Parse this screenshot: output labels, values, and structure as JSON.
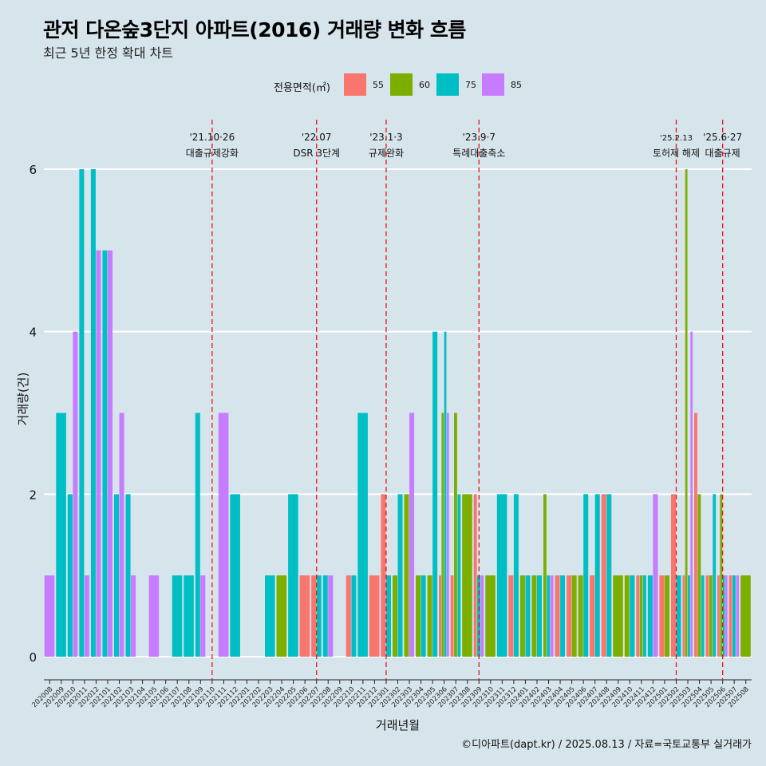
{
  "title": "관저 다온숲3단지 아파트(2016) 거래량 변화 흐름",
  "subtitle": "최근 5년 한정 확대 차트",
  "caption": "©디아파트(dapt.kr) / 2025.08.13 / 자료=국토교통부 실거래가",
  "legend": {
    "title": "전용면적(㎡)",
    "items": [
      {
        "label": "55",
        "color": "#f8766d"
      },
      {
        "label": "60",
        "color": "#7cae00"
      },
      {
        "label": "75",
        "color": "#00bfc4"
      },
      {
        "label": "85",
        "color": "#c77cff"
      }
    ]
  },
  "chart_data": {
    "type": "bar",
    "title": "관저 다온숲3단지 아파트(2016) 거래량 변화 흐름",
    "xlabel": "거래년월",
    "ylabel": "거래량(건)",
    "ylim": [
      0,
      6.5
    ],
    "yticks": [
      0,
      2,
      4,
      6
    ],
    "categories": [
      "202008",
      "202009",
      "202010",
      "202011",
      "202012",
      "202101",
      "202102",
      "202103",
      "202104",
      "202105",
      "202106",
      "202107",
      "202108",
      "202109",
      "202110",
      "202111",
      "202112",
      "202201",
      "202202",
      "202203",
      "202204",
      "202205",
      "202206",
      "202207",
      "202208",
      "202209",
      "202210",
      "202211",
      "202212",
      "202301",
      "202302",
      "202303",
      "202304",
      "202305",
      "202306",
      "202307",
      "202308",
      "202309",
      "202310",
      "202311",
      "202312",
      "202401",
      "202402",
      "202403",
      "202404",
      "202405",
      "202406",
      "202407",
      "202408",
      "202409",
      "202410",
      "202411",
      "202412",
      "202501",
      "202502",
      "202503",
      "202504",
      "202505",
      "202506",
      "202507",
      "202508"
    ],
    "series": [
      {
        "name": "55",
        "color": "#f8766d",
        "values": [
          0,
          0,
          0,
          0,
          0,
          0,
          0,
          0,
          0,
          0,
          0,
          0,
          0,
          0,
          0,
          0,
          0,
          0,
          0,
          0,
          0,
          0,
          1,
          1,
          0,
          0,
          1,
          0,
          1,
          2,
          0,
          0,
          0,
          0,
          1,
          1,
          0,
          2,
          0,
          0,
          1,
          0,
          0,
          0,
          1,
          1,
          0,
          1,
          2,
          0,
          0,
          1,
          0,
          1,
          2,
          1,
          3,
          1,
          1,
          1,
          0
        ]
      },
      {
        "name": "60",
        "color": "#7cae00",
        "values": [
          0,
          0,
          0,
          0,
          0,
          0,
          0,
          0,
          0,
          0,
          0,
          0,
          0,
          0,
          0,
          0,
          0,
          0,
          0,
          0,
          1,
          0,
          0,
          0,
          0,
          0,
          0,
          0,
          0,
          0,
          1,
          2,
          1,
          1,
          3,
          3,
          2,
          0,
          1,
          0,
          0,
          1,
          1,
          2,
          0,
          1,
          1,
          0,
          0,
          1,
          1,
          1,
          0,
          1,
          0,
          6,
          2,
          1,
          2,
          0,
          1
        ]
      },
      {
        "name": "75",
        "color": "#00bfc4",
        "values": [
          0,
          3,
          2,
          6,
          6,
          5,
          2,
          2,
          0,
          0,
          0,
          1,
          1,
          3,
          0,
          0,
          2,
          0,
          0,
          1,
          0,
          2,
          0,
          1,
          1,
          0,
          1,
          3,
          0,
          1,
          2,
          0,
          1,
          4,
          4,
          2,
          0,
          1,
          0,
          2,
          2,
          1,
          1,
          1,
          1,
          0,
          2,
          2,
          2,
          0,
          1,
          1,
          1,
          0,
          1,
          1,
          1,
          2,
          1,
          1,
          0
        ]
      },
      {
        "name": "85",
        "color": "#c77cff",
        "values": [
          1,
          0,
          4,
          1,
          5,
          5,
          3,
          1,
          0,
          1,
          0,
          0,
          0,
          1,
          0,
          3,
          0,
          0,
          0,
          0,
          0,
          0,
          0,
          0,
          1,
          0,
          0,
          0,
          0,
          0,
          0,
          3,
          0,
          0,
          3,
          0,
          0,
          1,
          0,
          0,
          0,
          0,
          0,
          1,
          0,
          0,
          0,
          0,
          0,
          0,
          0,
          0,
          2,
          0,
          0,
          4,
          0,
          0,
          1,
          1,
          0
        ]
      }
    ],
    "annotations": [
      {
        "at": "202110",
        "date": "'21.10·26",
        "label": "대출규제강화"
      },
      {
        "at": "202207",
        "date": "'22.07",
        "label": "DSR 3단계"
      },
      {
        "at": "202301",
        "date": "'23.1·3",
        "label": "규제완화"
      },
      {
        "at": "202309",
        "date": "'23.9·7",
        "label": "특례대출축소"
      },
      {
        "at": "202502",
        "date": "'25.2.13",
        "label": "토허제 해제"
      },
      {
        "at": "202506",
        "date": "'25.6·27",
        "label": "대출규제"
      }
    ]
  }
}
